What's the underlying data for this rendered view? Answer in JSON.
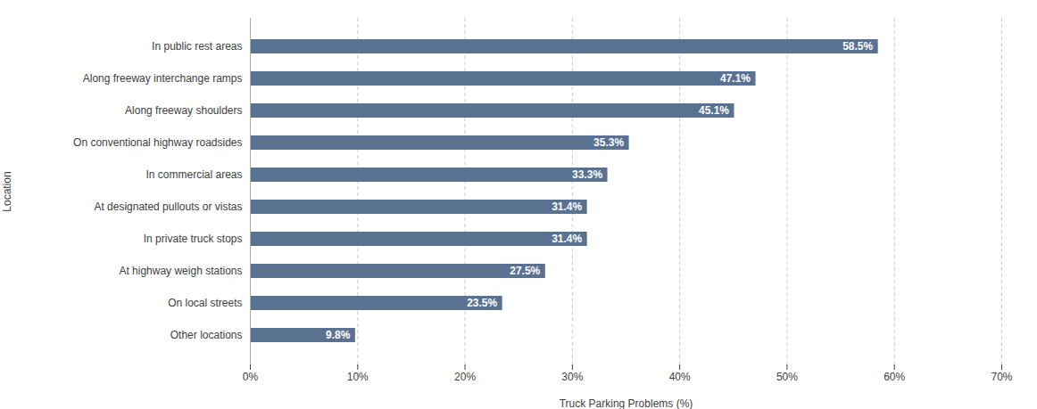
{
  "chart_data": {
    "type": "bar",
    "orientation": "horizontal",
    "categories": [
      "In public rest areas",
      "Along freeway interchange ramps",
      "Along freeway shoulders",
      "On conventional highway roadsides",
      "In commercial areas",
      "At designated pullouts or vistas",
      "In private truck stops",
      "At highway weigh stations",
      "On local streets",
      "Other locations"
    ],
    "values": [
      58.5,
      47.1,
      45.1,
      35.3,
      33.3,
      31.4,
      31.4,
      27.5,
      23.5,
      9.8
    ],
    "value_labels": [
      "58.5%",
      "47.1%",
      "45.1%",
      "35.3%",
      "33.3%",
      "31.4%",
      "31.4%",
      "27.5%",
      "23.5%",
      "9.8%"
    ],
    "data_labels": true,
    "color": "#5a7291",
    "xlabel": "Truck Parking Problems (%)",
    "ylabel": "Location",
    "xlim": [
      0,
      70
    ],
    "xticks": [
      {
        "value": 0,
        "label": "0%"
      },
      {
        "value": 10,
        "label": "10%"
      },
      {
        "value": 20,
        "label": "20%"
      },
      {
        "value": 30,
        "label": "30%"
      },
      {
        "value": 40,
        "label": "40%"
      },
      {
        "value": 50,
        "label": "50%"
      },
      {
        "value": 60,
        "label": "60%"
      },
      {
        "value": 70,
        "label": "70%"
      }
    ],
    "grid": true
  }
}
